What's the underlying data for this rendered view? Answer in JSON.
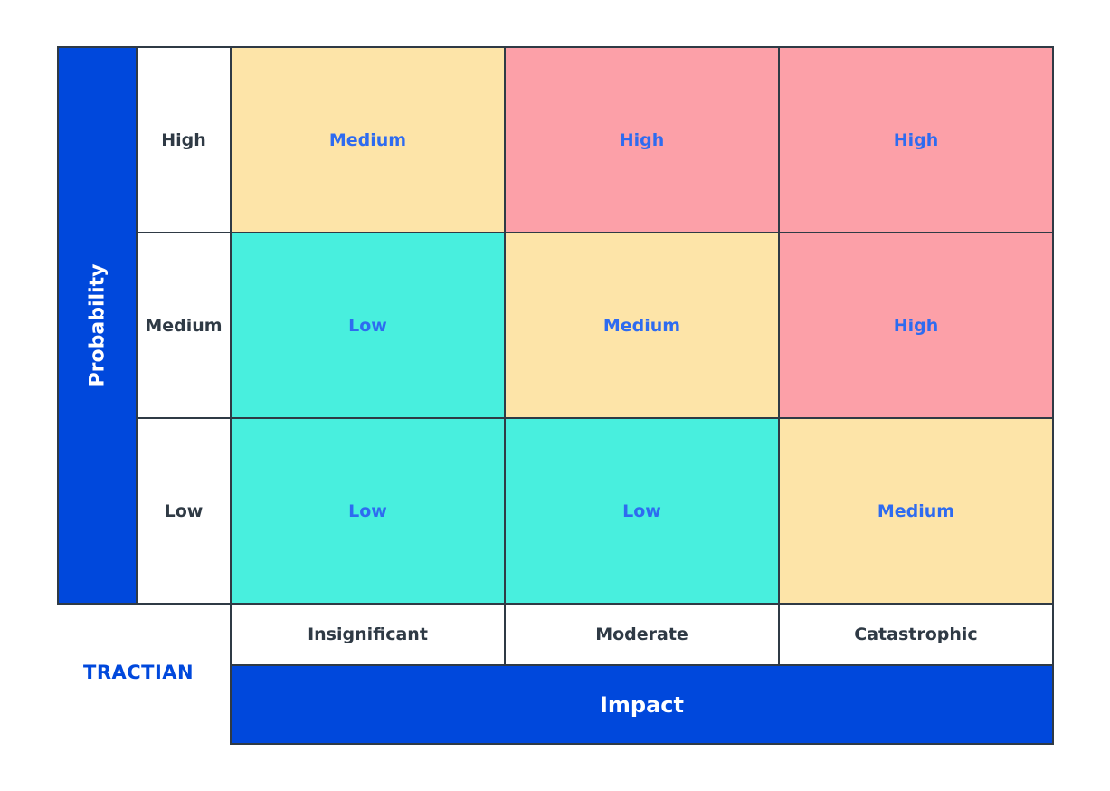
{
  "axis_y_title": "Probability",
  "axis_x_title": "Impact",
  "logo_text": "TRACTIAN",
  "rows": [
    "High",
    "Medium",
    "Low"
  ],
  "columns": [
    "Insignificant",
    "Moderate",
    "Catastrophic"
  ],
  "cells": [
    [
      "Medium",
      "High",
      "High"
    ],
    [
      "Low",
      "Medium",
      "High"
    ],
    [
      "Low",
      "Low",
      "Medium"
    ]
  ],
  "level_colors": {
    "Low": "#48efde",
    "Medium": "#fde4a8",
    "High": "#fca0a8"
  }
}
